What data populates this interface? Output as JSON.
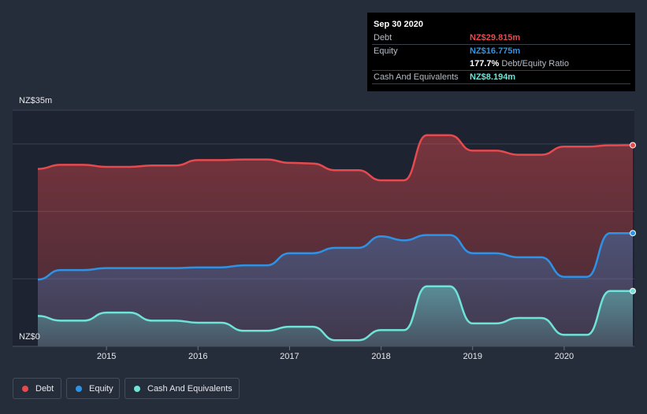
{
  "tooltip": {
    "date": "Sep 30 2020",
    "rows": [
      {
        "label": "Debt",
        "value": "NZ$29.815m",
        "color": "#e64a4e"
      },
      {
        "label": "Equity",
        "value": "NZ$16.775m",
        "color": "#2e93e6"
      },
      {
        "label": "",
        "value": "177.7%",
        "suffix": "Debt/Equity Ratio"
      },
      {
        "label": "Cash And Equivalents",
        "value": "NZ$8.194m",
        "color": "#6fe3d8"
      }
    ]
  },
  "legend": [
    {
      "label": "Debt",
      "color": "#e64a4e"
    },
    {
      "label": "Equity",
      "color": "#2e93e6"
    },
    {
      "label": "Cash And Equivalents",
      "color": "#6fe3d8"
    }
  ],
  "chart_data": {
    "type": "area",
    "ylim": [
      0,
      35
    ],
    "y_ticks_labels": [
      "NZ$0",
      "NZ$35m"
    ],
    "x_tick_labels": [
      "2015",
      "2016",
      "2017",
      "2018",
      "2019",
      "2020"
    ],
    "x_ticks": [
      2015,
      2016,
      2017,
      2018,
      2019,
      2020
    ],
    "xlim": [
      2014.25,
      2020.75
    ],
    "grid": true,
    "legend_position": "bottom-left",
    "series": [
      {
        "name": "Debt",
        "color": "#e64a4e",
        "x": [
          2014.25,
          2014.5,
          2014.75,
          2015.0,
          2015.25,
          2015.5,
          2015.75,
          2016.0,
          2016.25,
          2016.5,
          2016.75,
          2017.0,
          2017.25,
          2017.5,
          2017.75,
          2018.0,
          2018.25,
          2018.5,
          2018.75,
          2019.0,
          2019.25,
          2019.5,
          2019.75,
          2020.0,
          2020.25,
          2020.5,
          2020.75
        ],
        "values": [
          26.3,
          26.9,
          26.9,
          26.6,
          26.6,
          26.8,
          26.8,
          27.6,
          27.6,
          27.7,
          27.7,
          27.2,
          27.1,
          26.1,
          26.1,
          24.6,
          24.6,
          31.3,
          31.3,
          29.0,
          29.0,
          28.4,
          28.4,
          29.6,
          29.6,
          29.8,
          29.815
        ]
      },
      {
        "name": "Equity",
        "color": "#2e93e6",
        "x": [
          2014.25,
          2014.5,
          2014.75,
          2015.0,
          2015.25,
          2015.5,
          2015.75,
          2016.0,
          2016.25,
          2016.5,
          2016.75,
          2017.0,
          2017.25,
          2017.5,
          2017.75,
          2018.0,
          2018.25,
          2018.5,
          2018.75,
          2019.0,
          2019.25,
          2019.5,
          2019.75,
          2020.0,
          2020.25,
          2020.5,
          2020.75
        ],
        "values": [
          9.9,
          11.3,
          11.3,
          11.6,
          11.6,
          11.6,
          11.6,
          11.7,
          11.7,
          12.0,
          12.0,
          13.8,
          13.8,
          14.6,
          14.6,
          16.3,
          15.7,
          16.5,
          16.5,
          13.8,
          13.8,
          13.2,
          13.2,
          10.3,
          10.3,
          16.775,
          16.775
        ]
      },
      {
        "name": "Cash And Equivalents",
        "color": "#6fe3d8",
        "x": [
          2014.25,
          2014.5,
          2014.75,
          2015.0,
          2015.25,
          2015.5,
          2015.75,
          2016.0,
          2016.25,
          2016.5,
          2016.75,
          2017.0,
          2017.25,
          2017.5,
          2017.75,
          2018.0,
          2018.25,
          2018.5,
          2018.75,
          2019.0,
          2019.25,
          2019.5,
          2019.75,
          2020.0,
          2020.25,
          2020.5,
          2020.75
        ],
        "values": [
          4.5,
          3.8,
          3.8,
          5.0,
          5.0,
          3.8,
          3.8,
          3.5,
          3.5,
          2.3,
          2.3,
          2.9,
          2.9,
          0.9,
          0.9,
          2.4,
          2.4,
          8.9,
          8.9,
          3.4,
          3.4,
          4.2,
          4.2,
          1.7,
          1.7,
          8.194,
          8.194
        ]
      }
    ]
  }
}
